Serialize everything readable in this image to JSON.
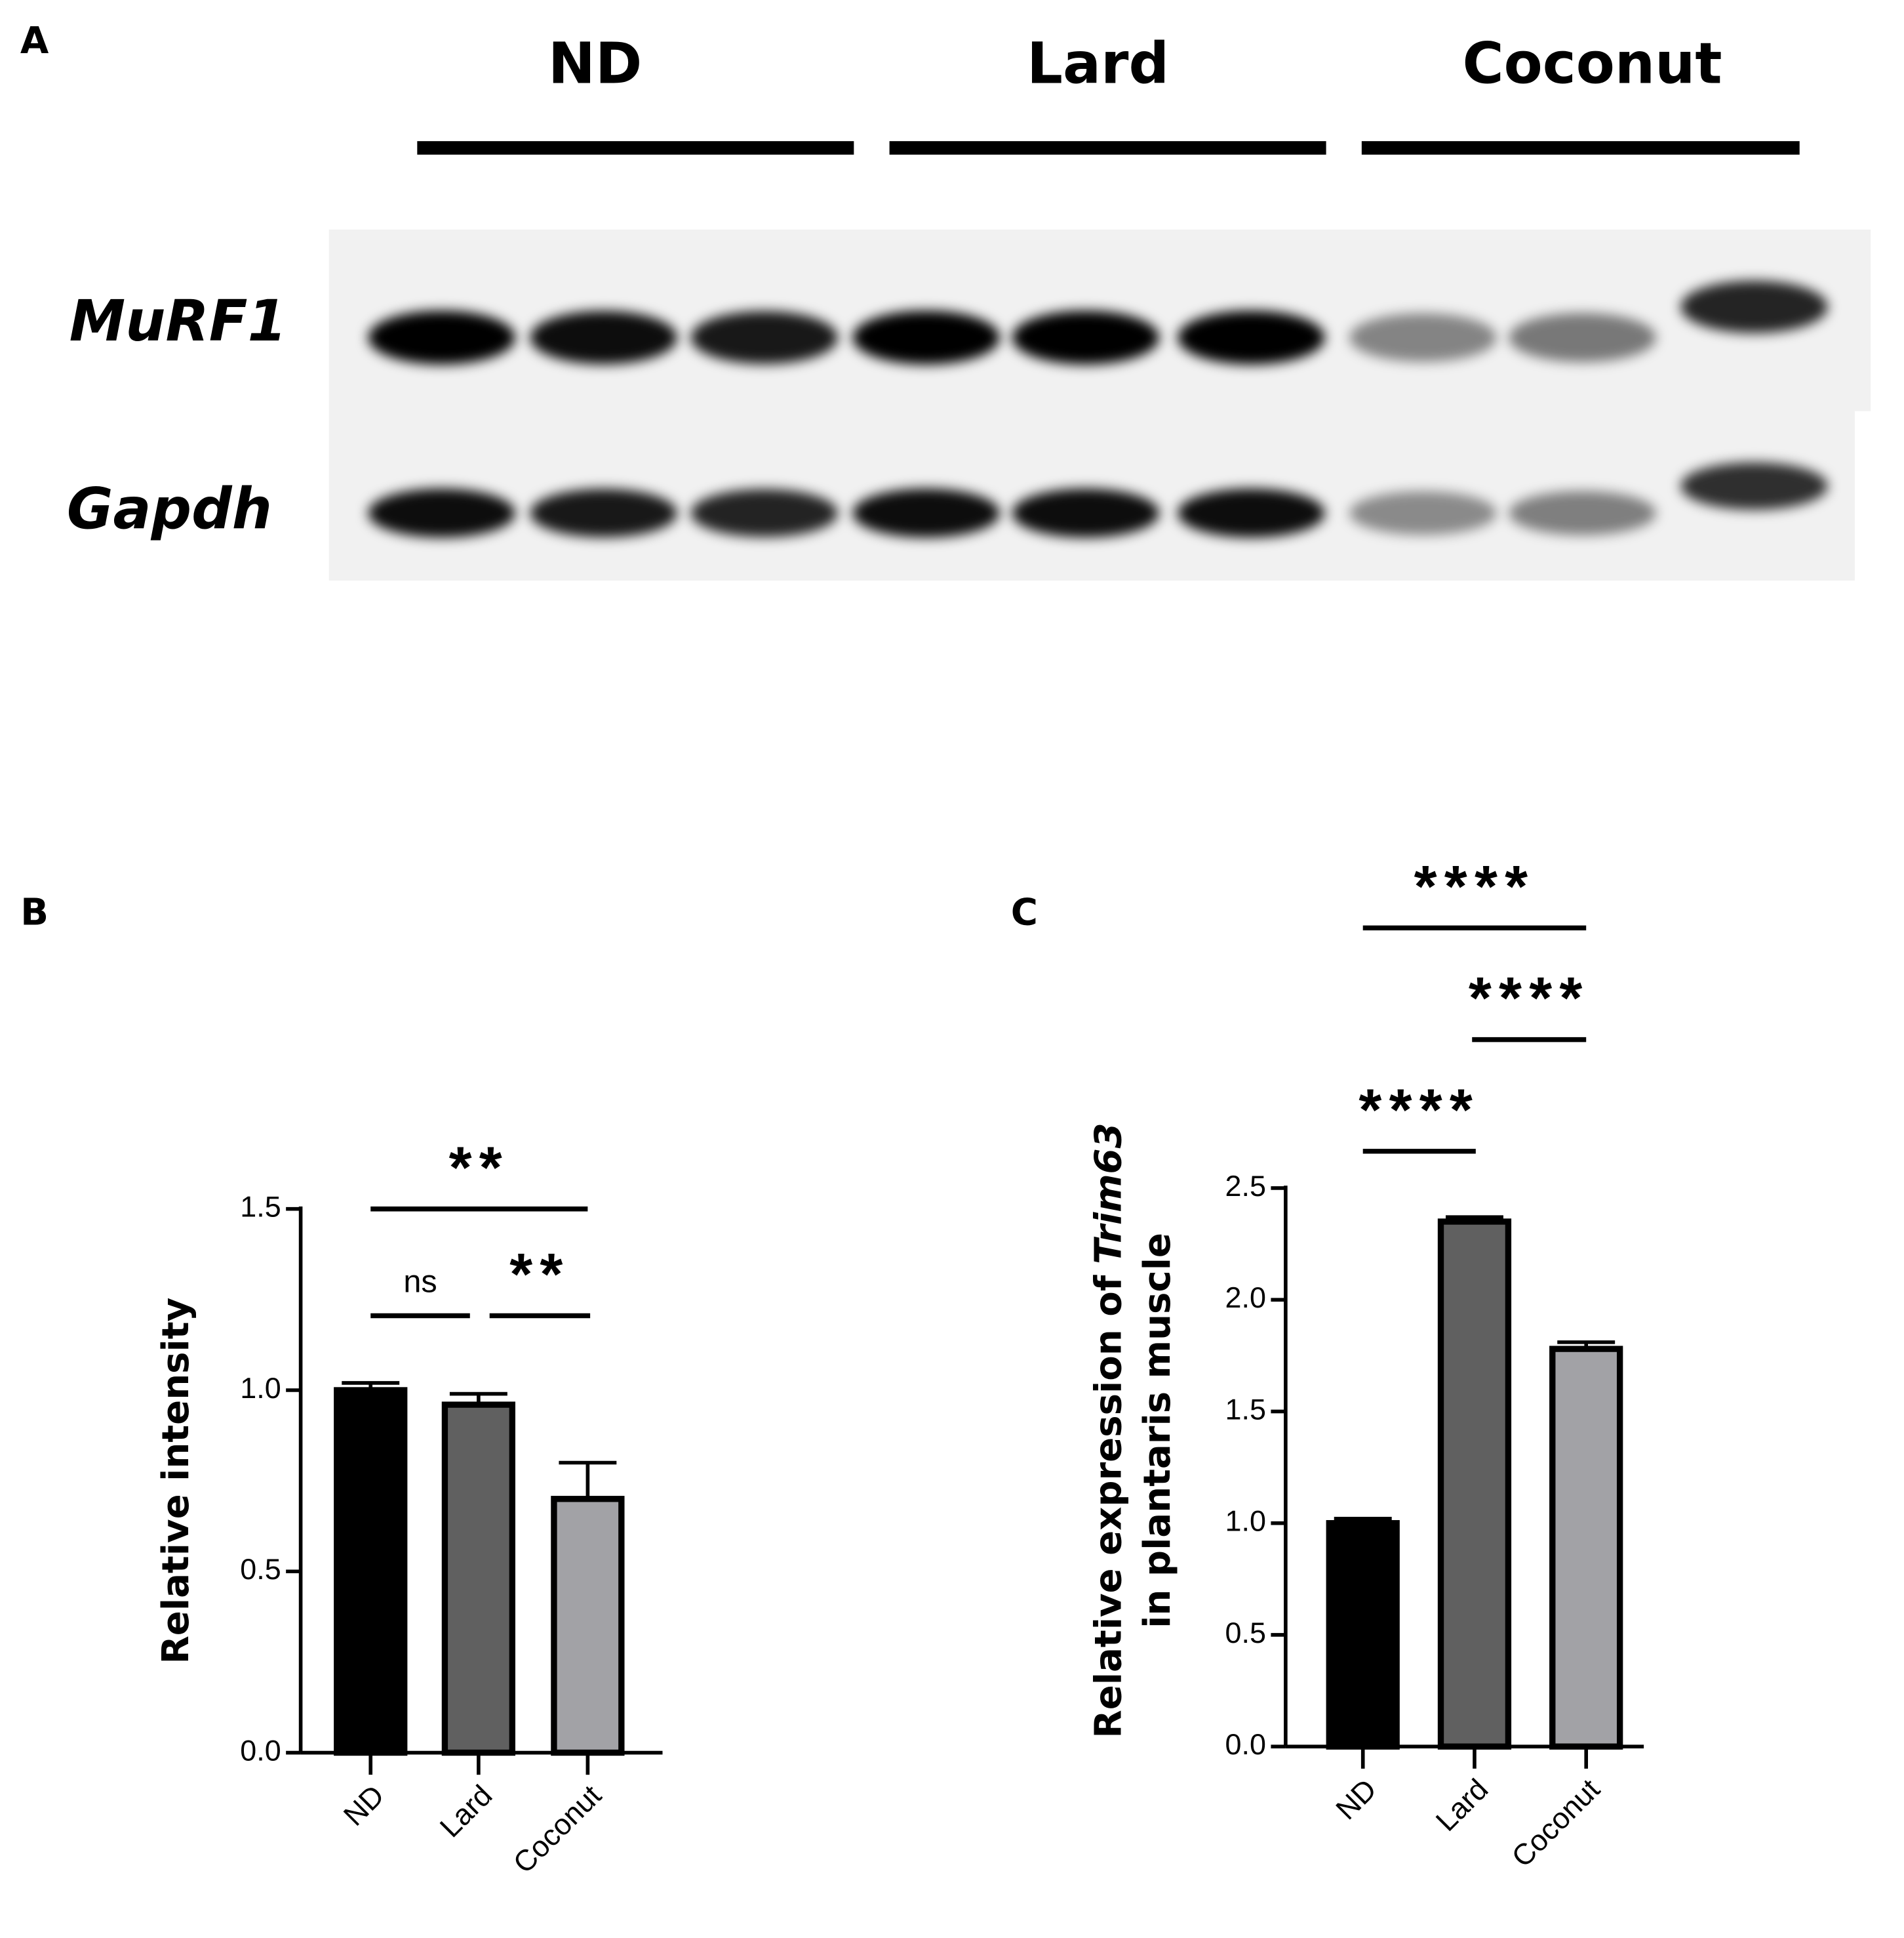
{
  "blot": {
    "label": "A",
    "groups": [
      "ND",
      "Lard",
      "Coconut"
    ],
    "rows": [
      "MuRF1",
      "Gapdh"
    ]
  },
  "chart_data": [
    {
      "type": "bar",
      "panel": "B",
      "ylabel": "Relative intensity",
      "categories": [
        "ND",
        "Lard",
        "Coconut"
      ],
      "values": [
        1.0,
        0.96,
        0.7
      ],
      "errors": [
        0.02,
        0.03,
        0.1
      ],
      "colors": [
        "#000000",
        "#606060",
        "#a2a2a6"
      ],
      "ylim": [
        0,
        1.5
      ],
      "yticks": [
        {
          "value": 0,
          "label": "0.0"
        },
        0.5,
        {
          "value": 1,
          "label": "1.0"
        },
        1.5
      ],
      "annotations": [
        "**",
        "ns",
        "**"
      ]
    },
    {
      "type": "bar",
      "panel": "C",
      "ylabel": [
        "Relative expression of",
        "Trim63",
        "in plantaris muscle"
      ],
      "categories": [
        "ND",
        "Lard",
        "Coconut"
      ],
      "values": [
        1.0,
        2.35,
        1.78
      ],
      "errors": [
        0.02,
        0.02,
        0.03
      ],
      "colors": [
        "#000000",
        "#606060",
        "#a2a2a6"
      ],
      "ylim": [
        0,
        2.5
      ],
      "yticks": [
        {
          "value": 0,
          "label": "0.0"
        },
        0.5,
        {
          "value": 1,
          "label": "1.0"
        },
        1.5,
        {
          "value": 2,
          "label": "2.0"
        },
        2.5
      ],
      "annotations": [
        "****",
        "****",
        "****"
      ]
    }
  ]
}
